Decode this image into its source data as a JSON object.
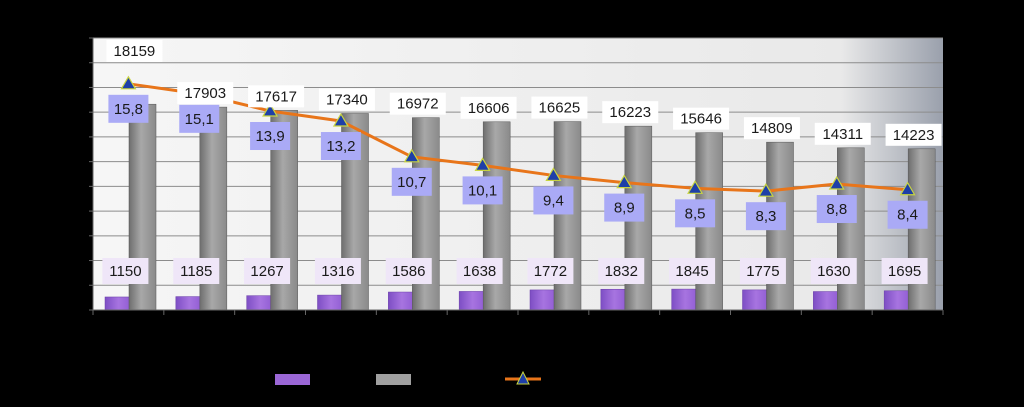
{
  "chart_data": {
    "type": "bar",
    "categories": [
      "",
      "",
      "",
      "",
      "",
      "",
      "",
      "",
      "",
      "",
      "",
      ""
    ],
    "series": [
      {
        "type": "bar",
        "color": "#9b67d6",
        "values": [
          1150,
          1185,
          1267,
          1316,
          1586,
          1638,
          1772,
          1832,
          1845,
          1775,
          1630,
          1695
        ],
        "labels": [
          "1150",
          "1185",
          "1267",
          "1316",
          "1586",
          "1638",
          "1772",
          "1832",
          "1845",
          "1775",
          "1630",
          "1695"
        ]
      },
      {
        "type": "bar",
        "color": "#a0a0a0",
        "values": [
          18159,
          17903,
          17617,
          17340,
          16972,
          16606,
          16625,
          16223,
          15646,
          14809,
          14311,
          14223
        ],
        "labels": [
          "18159",
          "17903",
          "17617",
          "17340",
          "16972",
          "16606",
          "16625",
          "16223",
          "15646",
          "14809",
          "14311",
          "14223"
        ]
      },
      {
        "type": "line",
        "color": "#e8751a",
        "marker_color": "#1e3fa8",
        "values": [
          15.8,
          15.1,
          13.9,
          13.2,
          10.7,
          10.1,
          9.4,
          8.9,
          8.5,
          8.3,
          8.8,
          8.4
        ],
        "labels": [
          "15,8",
          "15,1",
          "13,9",
          "13,2",
          "10,7",
          "10,1",
          "9,4",
          "8,9",
          "8,5",
          "8,3",
          "8,8",
          "8,4"
        ]
      }
    ],
    "ylim": [
      0,
      24000
    ],
    "y2lim": [
      0,
      19
    ],
    "grid": true,
    "legend_position": "bottom"
  }
}
